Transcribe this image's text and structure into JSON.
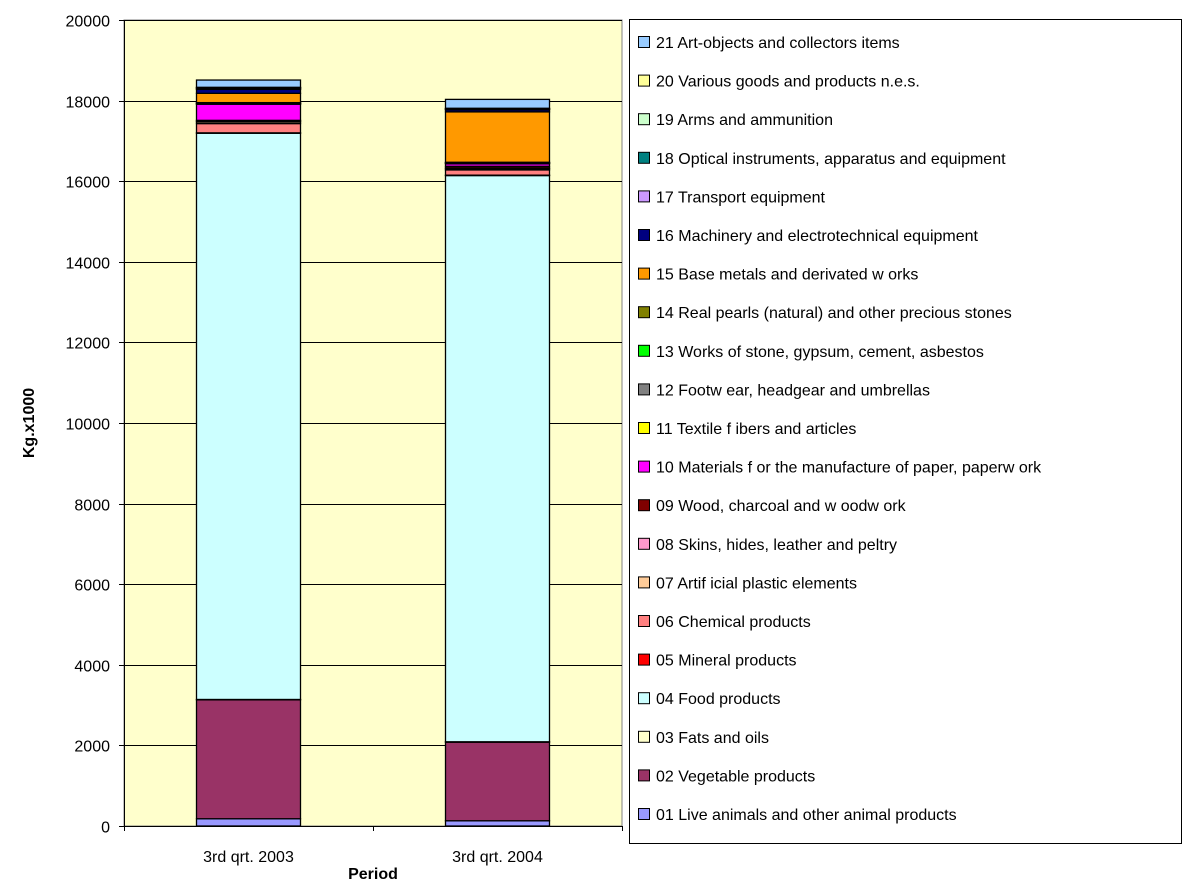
{
  "chart_data": {
    "type": "bar",
    "stacked": true,
    "title": "",
    "xlabel": "Period",
    "ylabel": "Kg.x1000",
    "ylim": [
      0,
      20000
    ],
    "yticks": [
      0,
      2000,
      4000,
      6000,
      8000,
      10000,
      12000,
      14000,
      16000,
      18000,
      20000
    ],
    "grid": true,
    "legend_position": "right",
    "categories": [
      "3rd qrt. 2003",
      "3rd qrt. 2004"
    ],
    "series": [
      {
        "name": "01 Live animals and other animal products",
        "color": "#9999FF",
        "values": [
          180,
          130
        ]
      },
      {
        "name": "02 Vegetable products",
        "color": "#993366",
        "values": [
          2950,
          1950
        ]
      },
      {
        "name": "03 Fats and oils",
        "color": "#FFFFCC",
        "values": [
          10,
          10
        ]
      },
      {
        "name": "04 Food products",
        "color": "#CCFFFF",
        "values": [
          14050,
          14050
        ]
      },
      {
        "name": "05 Mineral products",
        "color": "#FF0000",
        "values": [
          10,
          10
        ]
      },
      {
        "name": "06 Chemical products",
        "color": "#FF8080",
        "values": [
          230,
          130
        ]
      },
      {
        "name": "07 Artificial plastic elements",
        "color": "#FFCC99",
        "values": [
          40,
          30
        ]
      },
      {
        "name": "08 Skins, hides, leather and peltry",
        "color": "#FF99CC",
        "values": [
          20,
          20
        ]
      },
      {
        "name": "09 Wood, charcoal and woodwork",
        "color": "#800000",
        "values": [
          20,
          40
        ]
      },
      {
        "name": "10 Materials for the manufacture of paper, paperwork",
        "color": "#FF00FF",
        "values": [
          400,
          60
        ]
      },
      {
        "name": "11 Textile fibers and articles",
        "color": "#FFFF00",
        "values": [
          10,
          10
        ]
      },
      {
        "name": "12 Footwear, headgear and umbrellas",
        "color": "#808080",
        "values": [
          10,
          10
        ]
      },
      {
        "name": "13 Works of stone, gypsum, cement, asbestos",
        "color": "#00FF00",
        "values": [
          10,
          10
        ]
      },
      {
        "name": "14 Real pearls (natural) and other precious stones",
        "color": "#808000",
        "values": [
          10,
          10
        ]
      },
      {
        "name": "15 Base metals and derivated works",
        "color": "#FF9900",
        "values": [
          230,
          1250
        ]
      },
      {
        "name": "16 Machinery and electrotechnical equipment",
        "color": "#000080",
        "values": [
          100,
          50
        ]
      },
      {
        "name": "17 Transport equipment",
        "color": "#CC99FF",
        "values": [
          10,
          10
        ]
      },
      {
        "name": "18 Optical instruments, apparatus and equipment",
        "color": "#008080",
        "values": [
          20,
          10
        ]
      },
      {
        "name": "19 Arms and ammunition",
        "color": "#CCFFCC",
        "values": [
          10,
          10
        ]
      },
      {
        "name": "20 Various goods and products n.e.s.",
        "color": "#FFFF99",
        "values": [
          10,
          10
        ]
      },
      {
        "name": "21 Art-objects and collectors items",
        "color": "#99CCFF",
        "values": [
          180,
          220
        ]
      }
    ]
  },
  "legend_display": [
    "21 Art-objects and collectors items",
    "20 Various goods and products n.e.s.",
    "19 Arms and ammunition",
    "18 Optical instruments, apparatus and equipment",
    "17 Transport equipment",
    "16 Machinery and electrotechnical equipment",
    "15 Base metals and derivated w orks",
    "14 Real pearls (natural) and other precious stones",
    "13 Works of stone, gypsum, cement, asbestos",
    "12 Footw ear, headgear and umbrellas",
    "11 Textile f ibers and articles",
    "10 Materials f or the manufacture of paper, paperw ork",
    "09 Wood, charcoal and w oodw ork",
    "08 Skins, hides, leather and peltry",
    "07 Artif icial plastic elements",
    "06 Chemical products",
    "05 Mineral products",
    "04 Food products",
    "03 Fats and oils",
    "02 Vegetable products",
    "01 Live animals and other animal products"
  ],
  "colors": {
    "plot_background": "#FFFFCC",
    "grid": "#000000",
    "bar_outline": "#000000"
  }
}
